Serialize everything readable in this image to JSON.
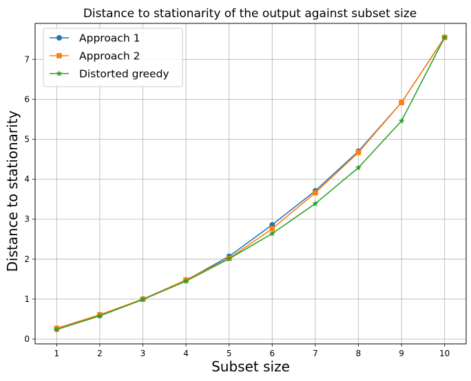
{
  "chart_data": {
    "type": "line",
    "title": "Distance to stationarity of the output against subset size",
    "xlabel": "Subset size",
    "ylabel": "Distance to stationarity",
    "x": [
      1,
      2,
      3,
      4,
      5,
      6,
      7,
      8,
      9,
      10
    ],
    "xlim": [
      0.5,
      10.5
    ],
    "ylim": [
      -0.12,
      7.9
    ],
    "xticks": [
      1,
      2,
      3,
      4,
      5,
      6,
      7,
      8,
      9,
      10
    ],
    "yticks": [
      0,
      1,
      2,
      3,
      4,
      5,
      6,
      7
    ],
    "grid": true,
    "legend_position": "upper-left",
    "series": [
      {
        "name": "Approach 1",
        "color": "#1f77b4",
        "marker": "circle",
        "values": [
          0.25,
          0.59,
          1.0,
          1.47,
          2.07,
          2.86,
          3.71,
          4.7,
          5.92,
          7.55
        ]
      },
      {
        "name": "Approach 2",
        "color": "#ff7f0e",
        "marker": "square",
        "values": [
          0.27,
          0.61,
          1.0,
          1.48,
          2.02,
          2.76,
          3.66,
          4.67,
          5.92,
          7.55
        ]
      },
      {
        "name": "Distorted greedy",
        "color": "#2ca02c",
        "marker": "star",
        "values": [
          0.24,
          0.58,
          0.99,
          1.45,
          2.01,
          2.64,
          3.39,
          4.29,
          5.46,
          7.55
        ]
      }
    ]
  }
}
